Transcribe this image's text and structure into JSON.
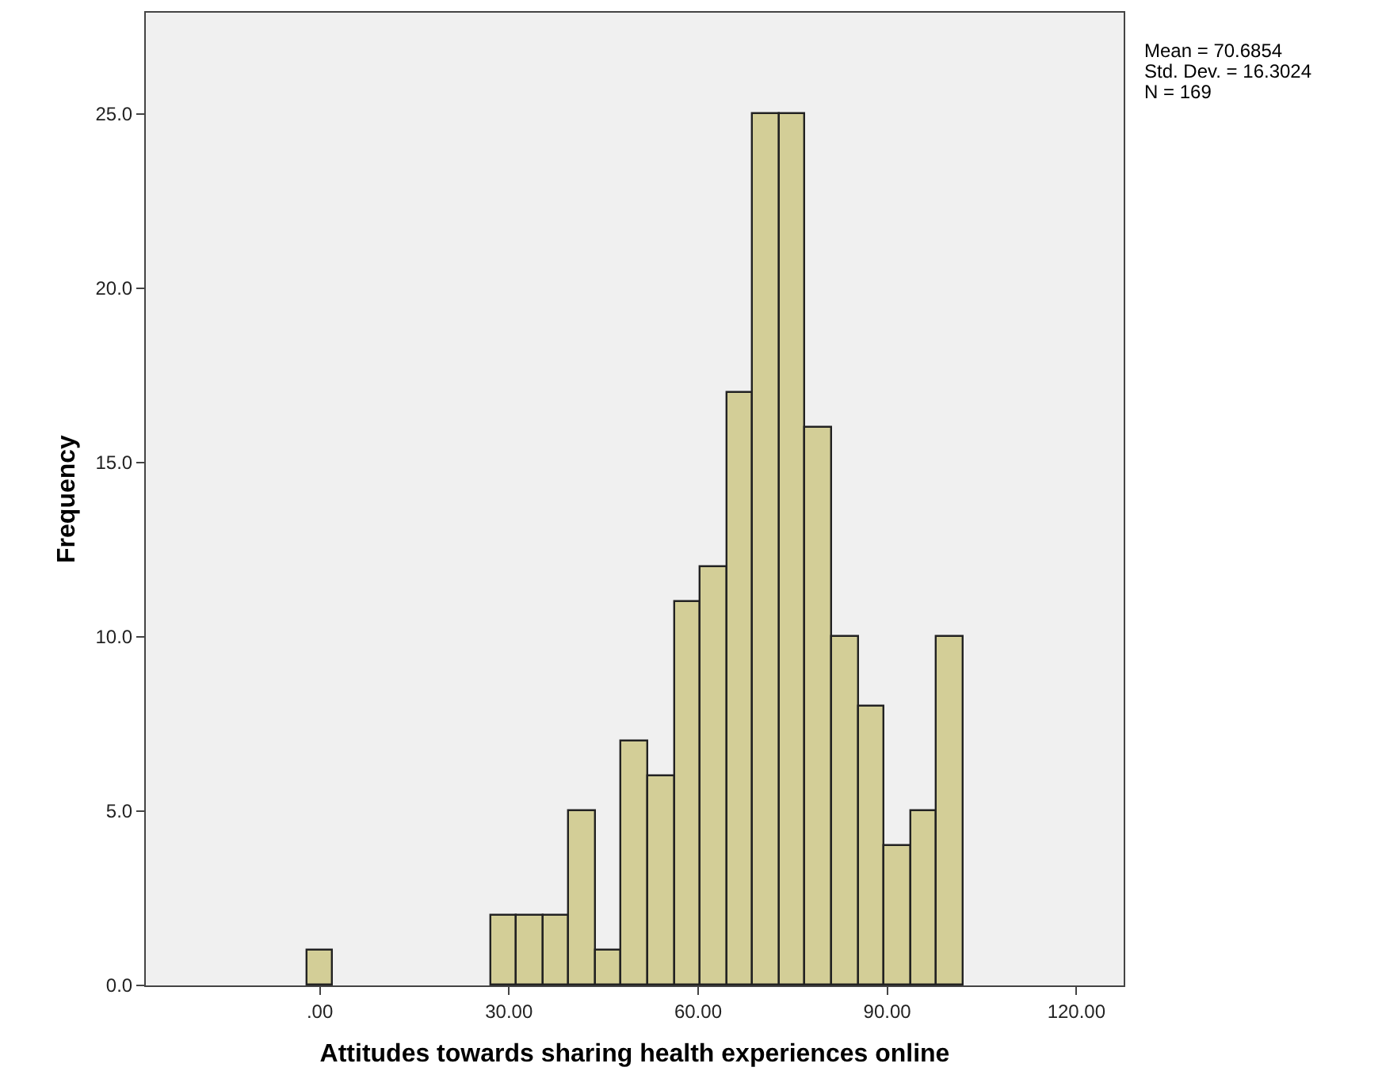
{
  "chart_data": {
    "type": "histogram",
    "xlabel": "Attitudes towards sharing health experiences online",
    "ylabel": "Frequency",
    "bins": [
      -2.08,
      2.08,
      6.25,
      10.42,
      14.58,
      18.75,
      22.92,
      27.08,
      31.25,
      35.42,
      39.58,
      43.75,
      47.92,
      52.08,
      56.25,
      60.42,
      64.58,
      68.75,
      72.92,
      77.08,
      81.25,
      85.42,
      89.58,
      93.75,
      97.92,
      102.08
    ],
    "values": [
      1,
      0,
      0,
      0,
      0,
      0,
      0,
      2,
      2,
      2,
      5,
      1,
      7,
      6,
      11,
      12,
      17,
      25,
      25,
      16,
      10,
      8,
      4,
      5,
      10
    ],
    "color": "#d3ce97",
    "xlim": [
      -27.6,
      127.5
    ],
    "xticks": [
      {
        "value": 0,
        "label": ".00"
      },
      {
        "value": 30,
        "label": "30.00"
      },
      {
        "value": 60,
        "label": "60.00"
      },
      {
        "value": 90,
        "label": "90.00"
      },
      {
        "value": 120,
        "label": "120.00"
      }
    ],
    "ylim": [
      0,
      27.9
    ],
    "yticks": [
      {
        "value": 0,
        "label": "0.0"
      },
      {
        "value": 5,
        "label": "5.0"
      },
      {
        "value": 10,
        "label": "10.0"
      },
      {
        "value": 15,
        "label": "15.0"
      },
      {
        "value": 20,
        "label": "20.0"
      },
      {
        "value": 25,
        "label": "25.0"
      }
    ],
    "grid": false,
    "annotations": [
      "Mean = 70.6854",
      "Std. Dev. = 16.3024",
      "N = 169"
    ]
  }
}
